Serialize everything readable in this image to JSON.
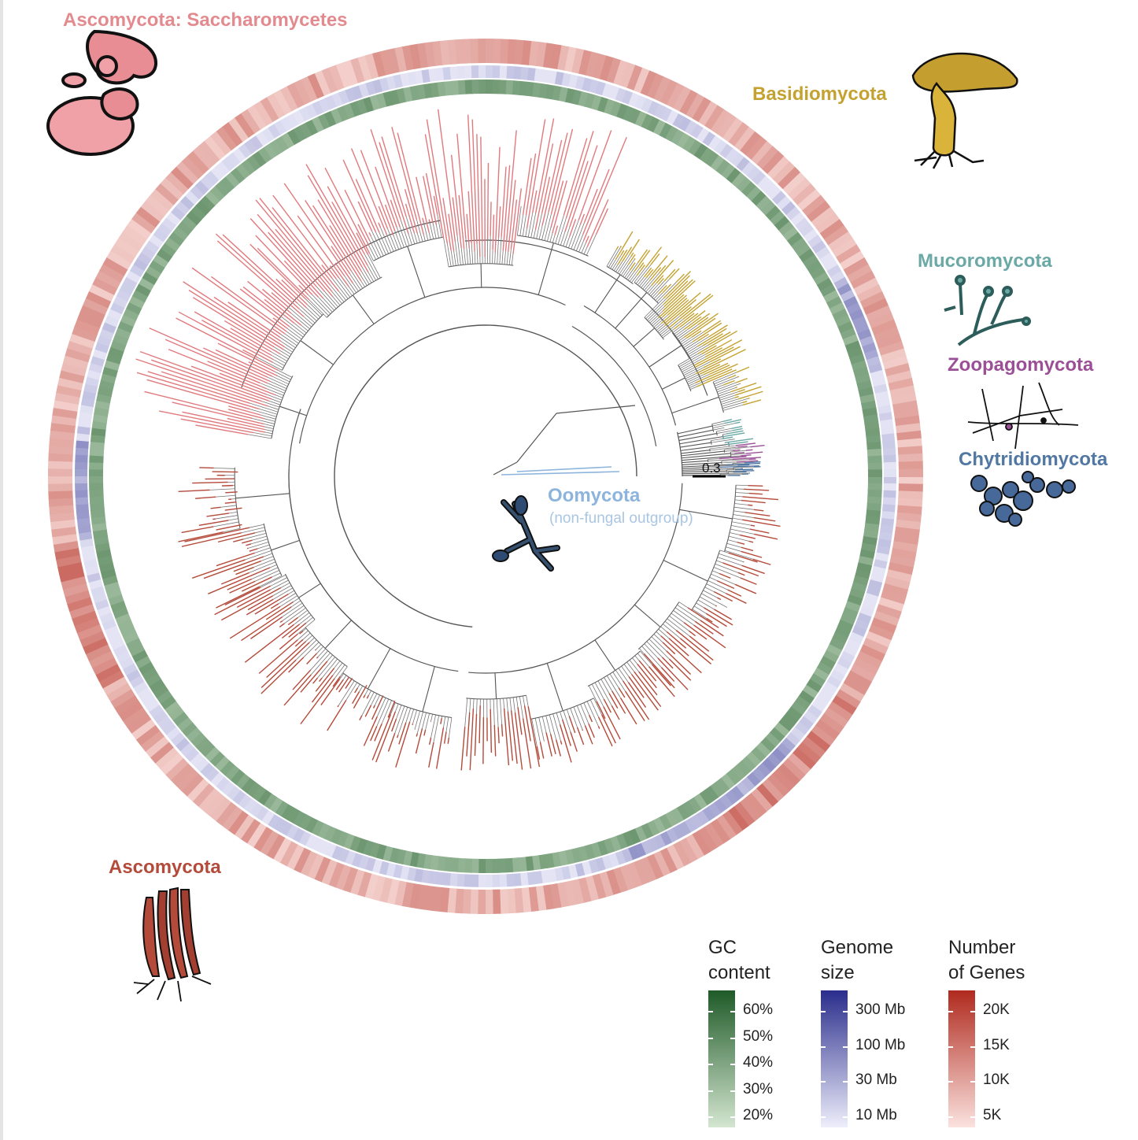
{
  "clades": {
    "saccharomycetes": {
      "label": "Ascomycota: Saccharomycetes",
      "color": "#e07a7e"
    },
    "basidiomycota": {
      "label": "Basidiomycota",
      "color": "#c4a231"
    },
    "mucoromycota": {
      "label": "Mucoromycota",
      "color": "#6aa9a6"
    },
    "zoopagomycota": {
      "label": "Zoopagomycota",
      "color": "#9b4f96"
    },
    "chytridiomycota": {
      "label": "Chytridiomycota",
      "color": "#5177a3"
    },
    "oomycota": {
      "label": "Oomycota",
      "sublabel": "(non-fungal outgroup)",
      "color": "#8cb4dc"
    },
    "ascomycota": {
      "label": "Ascomycota",
      "color": "#b44a3a"
    }
  },
  "scale_bar": {
    "label": "0.3"
  },
  "legend": {
    "gc": {
      "title": "GC\ncontent",
      "ticks": [
        "60%",
        "50%",
        "40%",
        "30%",
        "20%"
      ],
      "color_dark": "#1f5a28",
      "color_light": "#d4e6d0"
    },
    "genome": {
      "title": "Genome\nsize",
      "ticks": [
        "300 Mb",
        "100 Mb",
        "30 Mb",
        "10 Mb"
      ],
      "color_dark": "#2a2d8c",
      "color_light": "#eeeefb"
    },
    "genes": {
      "title": "Number\nof Genes",
      "ticks": [
        "20K",
        "15K",
        "10K",
        "5K"
      ],
      "color_dark": "#b02a1e",
      "color_light": "#fbe2df"
    }
  },
  "icons": [
    "yeast-icon",
    "mushroom-icon",
    "mucor-icon",
    "zoopago-icon",
    "chytrid-icon",
    "oomycete-icon",
    "cordyceps-icon"
  ]
}
